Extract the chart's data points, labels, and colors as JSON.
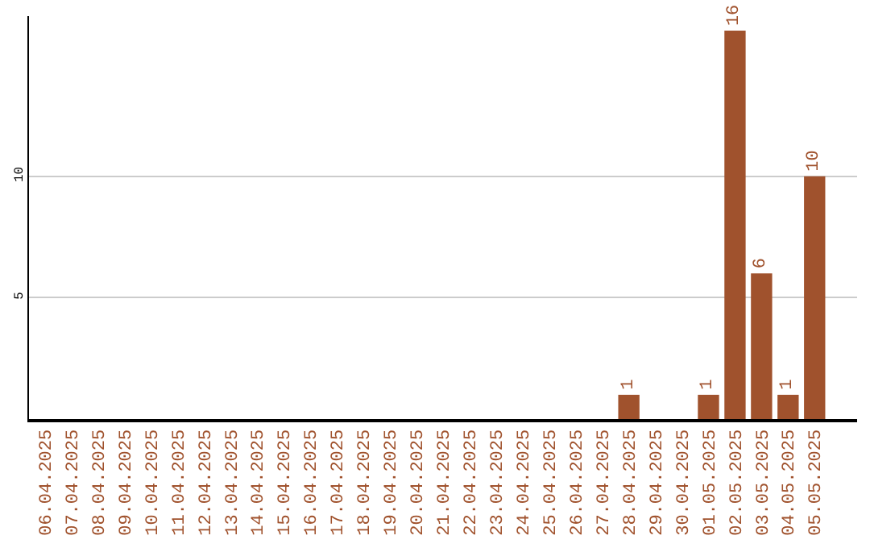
{
  "chart_data": {
    "type": "bar",
    "categories": [
      "06.04.2025",
      "07.04.2025",
      "08.04.2025",
      "09.04.2025",
      "10.04.2025",
      "11.04.2025",
      "12.04.2025",
      "13.04.2025",
      "14.04.2025",
      "15.04.2025",
      "16.04.2025",
      "17.04.2025",
      "18.04.2025",
      "19.04.2025",
      "20.04.2025",
      "21.04.2025",
      "22.04.2025",
      "23.04.2025",
      "24.04.2025",
      "25.04.2025",
      "26.04.2025",
      "27.04.2025",
      "28.04.2025",
      "29.04.2025",
      "30.04.2025",
      "01.05.2025",
      "02.05.2025",
      "03.05.2025",
      "04.05.2025",
      "05.05.2025"
    ],
    "values": [
      0,
      0,
      0,
      0,
      0,
      0,
      0,
      0,
      0,
      0,
      0,
      0,
      0,
      0,
      0,
      0,
      0,
      0,
      0,
      0,
      0,
      0,
      1,
      0,
      0,
      1,
      16,
      6,
      1,
      10
    ],
    "value_labels": [
      null,
      null,
      null,
      null,
      null,
      null,
      null,
      null,
      null,
      null,
      null,
      null,
      null,
      null,
      null,
      null,
      null,
      null,
      null,
      null,
      null,
      null,
      "1",
      null,
      null,
      "1",
      "16",
      "6",
      "1",
      "10"
    ],
    "color": "#a0522d",
    "ylim": [
      0,
      16.6
    ],
    "yticks": [
      5,
      10
    ],
    "grid": "y",
    "legend": false
  }
}
